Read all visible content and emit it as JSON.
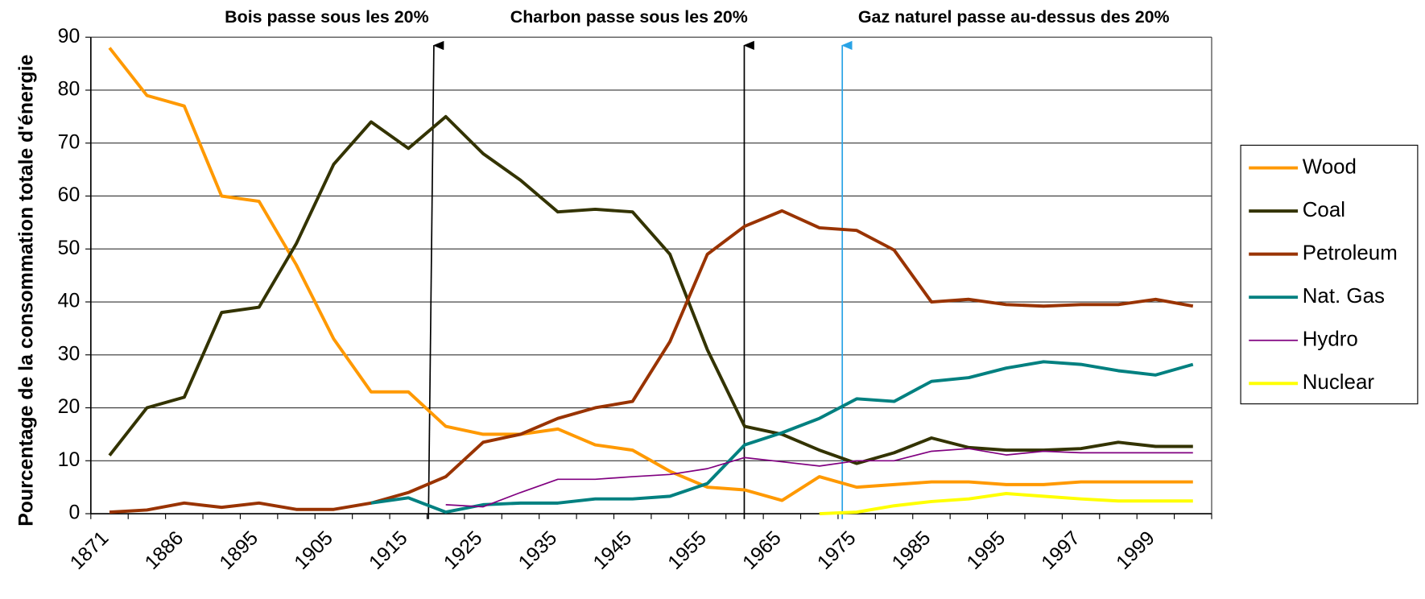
{
  "chart_data": {
    "type": "line",
    "y_axis_label": "Pourcentage de la consommation totale d'énergie",
    "annotations": [
      "Bois passe sous les 20%",
      "Charbon passe sous les 20%",
      "Gaz naturel passe au-dessus des 20%"
    ],
    "annotation_colors": [
      "#000000",
      "#000000",
      "#29a3e6"
    ],
    "categories": [
      "1871",
      null,
      "1886",
      null,
      "1895",
      null,
      "1905",
      null,
      "1915",
      null,
      "1925",
      null,
      "1935",
      null,
      "1945",
      null,
      "1955",
      null,
      "1965",
      null,
      "1975",
      null,
      "1985",
      null,
      "1995",
      null,
      "1997",
      null,
      "1999",
      null
    ],
    "series": [
      {
        "name": "Wood",
        "color": "#ff9900",
        "line_width": 3.5,
        "values": [
          88,
          79,
          77,
          60,
          59,
          47,
          33,
          23,
          23,
          16.5,
          15,
          15,
          16,
          13,
          12,
          8,
          5,
          4.5,
          2.5,
          7,
          5,
          5.5,
          6,
          6,
          5.5,
          5.5,
          6,
          6,
          6,
          6
        ]
      },
      {
        "name": "Coal",
        "color": "#333300",
        "line_width": 3.5,
        "values": [
          11,
          20,
          22,
          38,
          39,
          51,
          66,
          74,
          69,
          75,
          68,
          63,
          57,
          57.5,
          57,
          49,
          31,
          16.5,
          15,
          12,
          9.5,
          11.5,
          14.3,
          12.5,
          12,
          12,
          12.3,
          13.5,
          12.7,
          12.7
        ]
      },
      {
        "name": "Petroleum",
        "color": "#993300",
        "line_width": 3.5,
        "values": [
          0.3,
          0.7,
          2,
          1.2,
          2,
          0.8,
          0.8,
          2,
          4,
          7,
          13.5,
          15,
          18,
          20,
          21.2,
          32.5,
          49,
          54.3,
          57.2,
          54,
          53.5,
          49.8,
          40,
          40.5,
          39.5,
          39.2,
          39.5,
          39.5,
          40.5,
          39.2
        ]
      },
      {
        "name": "Nat. Gas",
        "color": "#008080",
        "line_width": 3.5,
        "values": [
          null,
          null,
          null,
          null,
          null,
          null,
          null,
          2,
          3,
          0.3,
          1.7,
          2,
          2,
          2.8,
          2.8,
          3.3,
          5.7,
          13,
          15.3,
          18,
          21.7,
          21.2,
          25,
          25.7,
          27.5,
          28.7,
          28.2,
          27,
          26.2,
          28.2
        ]
      },
      {
        "name": "Hydro",
        "color": "#800080",
        "line_width": 1.5,
        "values": [
          null,
          null,
          null,
          null,
          null,
          null,
          null,
          null,
          null,
          1.7,
          1.3,
          4,
          6.5,
          6.5,
          7,
          7.4,
          8.5,
          10.6,
          9.8,
          9,
          10,
          10,
          11.8,
          12.3,
          11.1,
          11.8,
          11.5,
          11.5,
          11.5,
          11.5
        ]
      },
      {
        "name": "Nuclear",
        "color": "#ffff00",
        "line_width": 3.5,
        "values": [
          null,
          null,
          null,
          null,
          null,
          null,
          null,
          null,
          null,
          null,
          null,
          null,
          null,
          null,
          null,
          null,
          null,
          null,
          null,
          0,
          0.3,
          1.5,
          2.3,
          2.8,
          3.8,
          3.3,
          2.8,
          2.4,
          2.4,
          2.4
        ]
      }
    ],
    "ylim": [
      0,
      90
    ],
    "yticks": [
      0,
      10,
      20,
      30,
      40,
      50,
      60,
      70,
      80,
      90
    ],
    "grid": true,
    "legend": "right"
  }
}
